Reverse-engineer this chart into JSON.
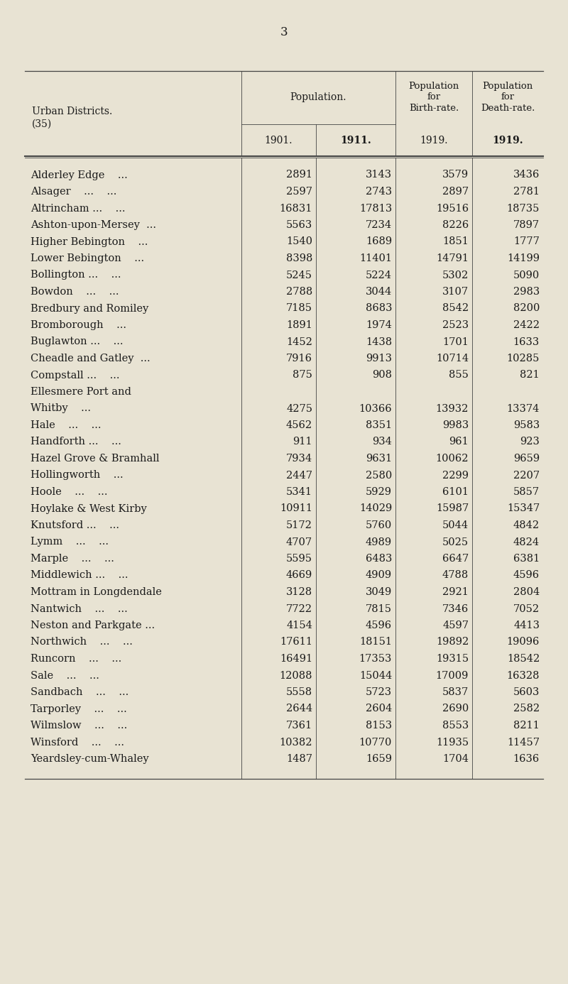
{
  "page_number": "3",
  "bg_color": "#e8e3d3",
  "header_col1": "Urban Districts.\n(35)",
  "header_col2_span": "Population.",
  "header_col3": "Population\nfor\nBirth-rate.",
  "header_col4": "Population\nfor\nDeath-rate.",
  "sub_headers": [
    "1901.",
    "1911.",
    "1919.",
    "1919."
  ],
  "sub_bold": [
    false,
    true,
    false,
    true
  ],
  "rows": [
    [
      "Alderley Edge    ...",
      "2891",
      "3143",
      "3579",
      "3436"
    ],
    [
      "Alsager    ...    ...",
      "2597",
      "2743",
      "2897",
      "2781"
    ],
    [
      "Altrincham ...    ...",
      "16831",
      "17813",
      "19516",
      "18735"
    ],
    [
      "Ashton-upon-Mersey  ...",
      "5563",
      "7234",
      "8226",
      "7897"
    ],
    [
      "Higher Bebington    ...",
      "1540",
      "1689",
      "1851",
      "1777"
    ],
    [
      "Lower Bebington    ...",
      "8398",
      "11401",
      "14791",
      "14199"
    ],
    [
      "Bollington ...    ...",
      "5245",
      "5224",
      "5302",
      "5090"
    ],
    [
      "Bowdon    ...    ...",
      "2788",
      "3044",
      "3107",
      "2983"
    ],
    [
      "Bredbury and Romiley",
      "7185",
      "8683",
      "8542",
      "8200"
    ],
    [
      "Bromborough    ...",
      "1891",
      "1974",
      "2523",
      "2422"
    ],
    [
      "Buglawton ...    ...",
      "1452",
      "1438",
      "1701",
      "1633"
    ],
    [
      "Cheadle and Gatley  ...",
      "7916",
      "9913",
      "10714",
      "10285"
    ],
    [
      "Compstall ...    ...",
      "875",
      "908",
      "855",
      "821"
    ],
    [
      "Ellesmere Port and\n    Whitby    ...",
      "4275",
      "10366",
      "13932",
      "13374"
    ],
    [
      "Hale    ...    ...",
      "4562",
      "8351",
      "9983",
      "9583"
    ],
    [
      "Handforth ...    ...",
      "911",
      "934",
      "961",
      "923"
    ],
    [
      "Hazel Grove & Bramhall",
      "7934",
      "9631",
      "10062",
      "9659"
    ],
    [
      "Hollingworth    ...",
      "2447",
      "2580",
      "2299",
      "2207"
    ],
    [
      "Hoole    ...    ...",
      "5341",
      "5929",
      "6101",
      "5857"
    ],
    [
      "Hoylake & West Kirby",
      "10911",
      "14029",
      "15987",
      "15347"
    ],
    [
      "Knutsford ...    ...",
      "5172",
      "5760",
      "5044",
      "4842"
    ],
    [
      "Lymm    ...    ...",
      "4707",
      "4989",
      "5025",
      "4824"
    ],
    [
      "Marple    ...    ...",
      "5595",
      "6483",
      "6647",
      "6381"
    ],
    [
      "Middlewich ...    ...",
      "4669",
      "4909",
      "4788",
      "4596"
    ],
    [
      "Mottram in Longdendale",
      "3128",
      "3049",
      "2921",
      "2804"
    ],
    [
      "Nantwich    ...    ...",
      "7722",
      "7815",
      "7346",
      "7052"
    ],
    [
      "Neston and Parkgate ...",
      "4154",
      "4596",
      "4597",
      "4413"
    ],
    [
      "Northwich    ...    ...",
      "17611",
      "18151",
      "19892",
      "19096"
    ],
    [
      "Runcorn    ...    ...",
      "16491",
      "17353",
      "19315",
      "18542"
    ],
    [
      "Sale    ...    ...",
      "12088",
      "15044",
      "17009",
      "16328"
    ],
    [
      "Sandbach    ...    ...",
      "5558",
      "5723",
      "5837",
      "5603"
    ],
    [
      "Tarporley    ...    ...",
      "2644",
      "2604",
      "2690",
      "2582"
    ],
    [
      "Wilmslow    ...    ...",
      "7361",
      "8153",
      "8553",
      "8211"
    ],
    [
      "Winsford    ...    ...",
      "10382",
      "10770",
      "11935",
      "11457"
    ],
    [
      "Yeardsley-cum-Whaley",
      "1487",
      "1659",
      "1704",
      "1636"
    ]
  ],
  "text_color": "#1a1a1a",
  "line_color": "#444444",
  "font_size_body": 10.5,
  "font_size_header": 10.0,
  "font_size_page": 12
}
